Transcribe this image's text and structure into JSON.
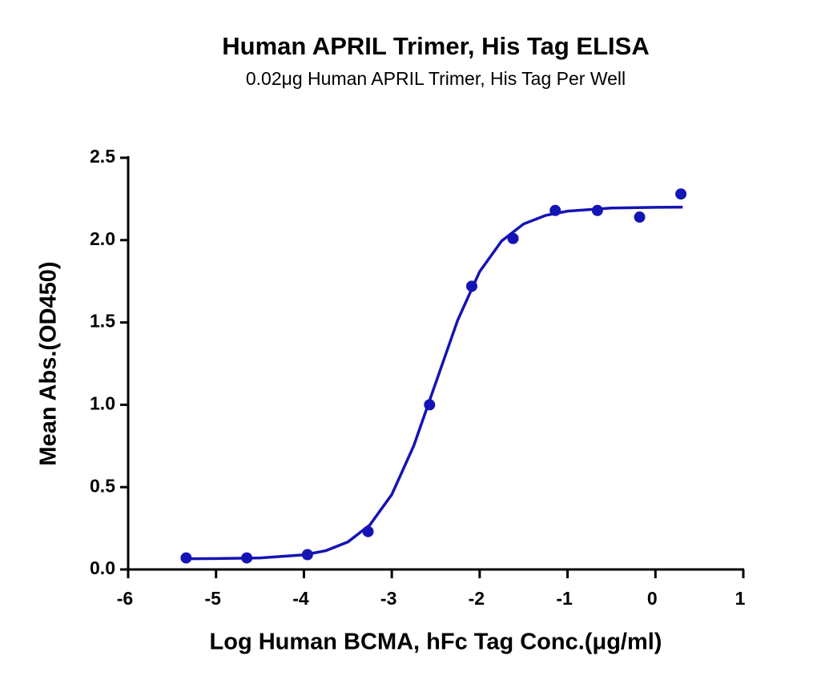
{
  "chart_data": {
    "type": "scatter",
    "title": "Human APRIL Trimer, His Tag ELISA",
    "subtitle": "0.02μg Human APRIL Trimer, His Tag Per Well",
    "xlabel": "Log Human BCMA, hFc Tag Conc.(μg/ml)",
    "ylabel": "Mean Abs.(OD450)",
    "xlim": [
      -6,
      1
    ],
    "xticks": [
      -6,
      -5,
      -4,
      -3,
      -2,
      -1,
      0,
      1
    ],
    "ylim": [
      0,
      2.5
    ],
    "yticks": [
      {
        "value": 0,
        "label": "0.0"
      },
      0.5,
      {
        "value": 1,
        "label": "1.0"
      },
      1.5,
      {
        "value": 2,
        "label": "2.0"
      },
      2.5
    ],
    "grid": false,
    "series": [
      {
        "mode": "markers",
        "color": "#1414b4",
        "x": [
          -5.34,
          -4.65,
          -3.96,
          -3.27,
          -2.57,
          -2.09,
          -1.62,
          -1.14,
          -0.66,
          -0.18,
          0.29
        ],
        "values": [
          0.07,
          0.07,
          0.09,
          0.23,
          1.0,
          1.72,
          2.01,
          2.18,
          2.18,
          2.14,
          2.28
        ]
      },
      {
        "mode": "line",
        "color": "#1414b4",
        "x": [
          -5.34,
          -5.0,
          -4.5,
          -4.0,
          -3.75,
          -3.5,
          -3.25,
          -3.0,
          -2.75,
          -2.5,
          -2.25,
          -2.0,
          -1.75,
          -1.5,
          -1.25,
          -1.0,
          -0.5,
          0.0,
          0.31
        ],
        "values": [
          0.065,
          0.066,
          0.07,
          0.089,
          0.114,
          0.167,
          0.27,
          0.455,
          0.751,
          1.133,
          1.514,
          1.809,
          1.995,
          2.098,
          2.15,
          2.176,
          2.195,
          2.199,
          2.2
        ]
      }
    ]
  }
}
